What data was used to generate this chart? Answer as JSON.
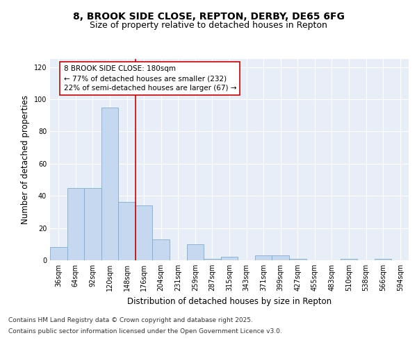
{
  "title_line1": "8, BROOK SIDE CLOSE, REPTON, DERBY, DE65 6FG",
  "title_line2": "Size of property relative to detached houses in Repton",
  "xlabel": "Distribution of detached houses by size in Repton",
  "ylabel": "Number of detached properties",
  "categories": [
    "36sqm",
    "64sqm",
    "92sqm",
    "120sqm",
    "148sqm",
    "176sqm",
    "204sqm",
    "231sqm",
    "259sqm",
    "287sqm",
    "315sqm",
    "343sqm",
    "371sqm",
    "399sqm",
    "427sqm",
    "455sqm",
    "483sqm",
    "510sqm",
    "538sqm",
    "566sqm",
    "594sqm"
  ],
  "values": [
    8,
    45,
    45,
    95,
    36,
    34,
    13,
    0,
    10,
    1,
    2,
    0,
    3,
    3,
    1,
    0,
    0,
    1,
    0,
    1,
    0
  ],
  "bar_color": "#c5d8ef",
  "bar_edge_color": "#7aadd4",
  "background_color": "#ffffff",
  "plot_bg_color": "#e8eef8",
  "vline_x_idx": 5,
  "vline_color": "#cc0000",
  "annotation_text": "8 BROOK SIDE CLOSE: 180sqm\n← 77% of detached houses are smaller (232)\n22% of semi-detached houses are larger (67) →",
  "annotation_box_facecolor": "#ffffff",
  "annotation_box_edgecolor": "#cc0000",
  "ylim": [
    0,
    125
  ],
  "yticks": [
    0,
    20,
    40,
    60,
    80,
    100,
    120
  ],
  "footer_line1": "Contains HM Land Registry data © Crown copyright and database right 2025.",
  "footer_line2": "Contains public sector information licensed under the Open Government Licence v3.0.",
  "title_fontsize": 10,
  "subtitle_fontsize": 9,
  "axis_label_fontsize": 8.5,
  "tick_fontsize": 7,
  "annotation_fontsize": 7.5,
  "footer_fontsize": 6.5
}
